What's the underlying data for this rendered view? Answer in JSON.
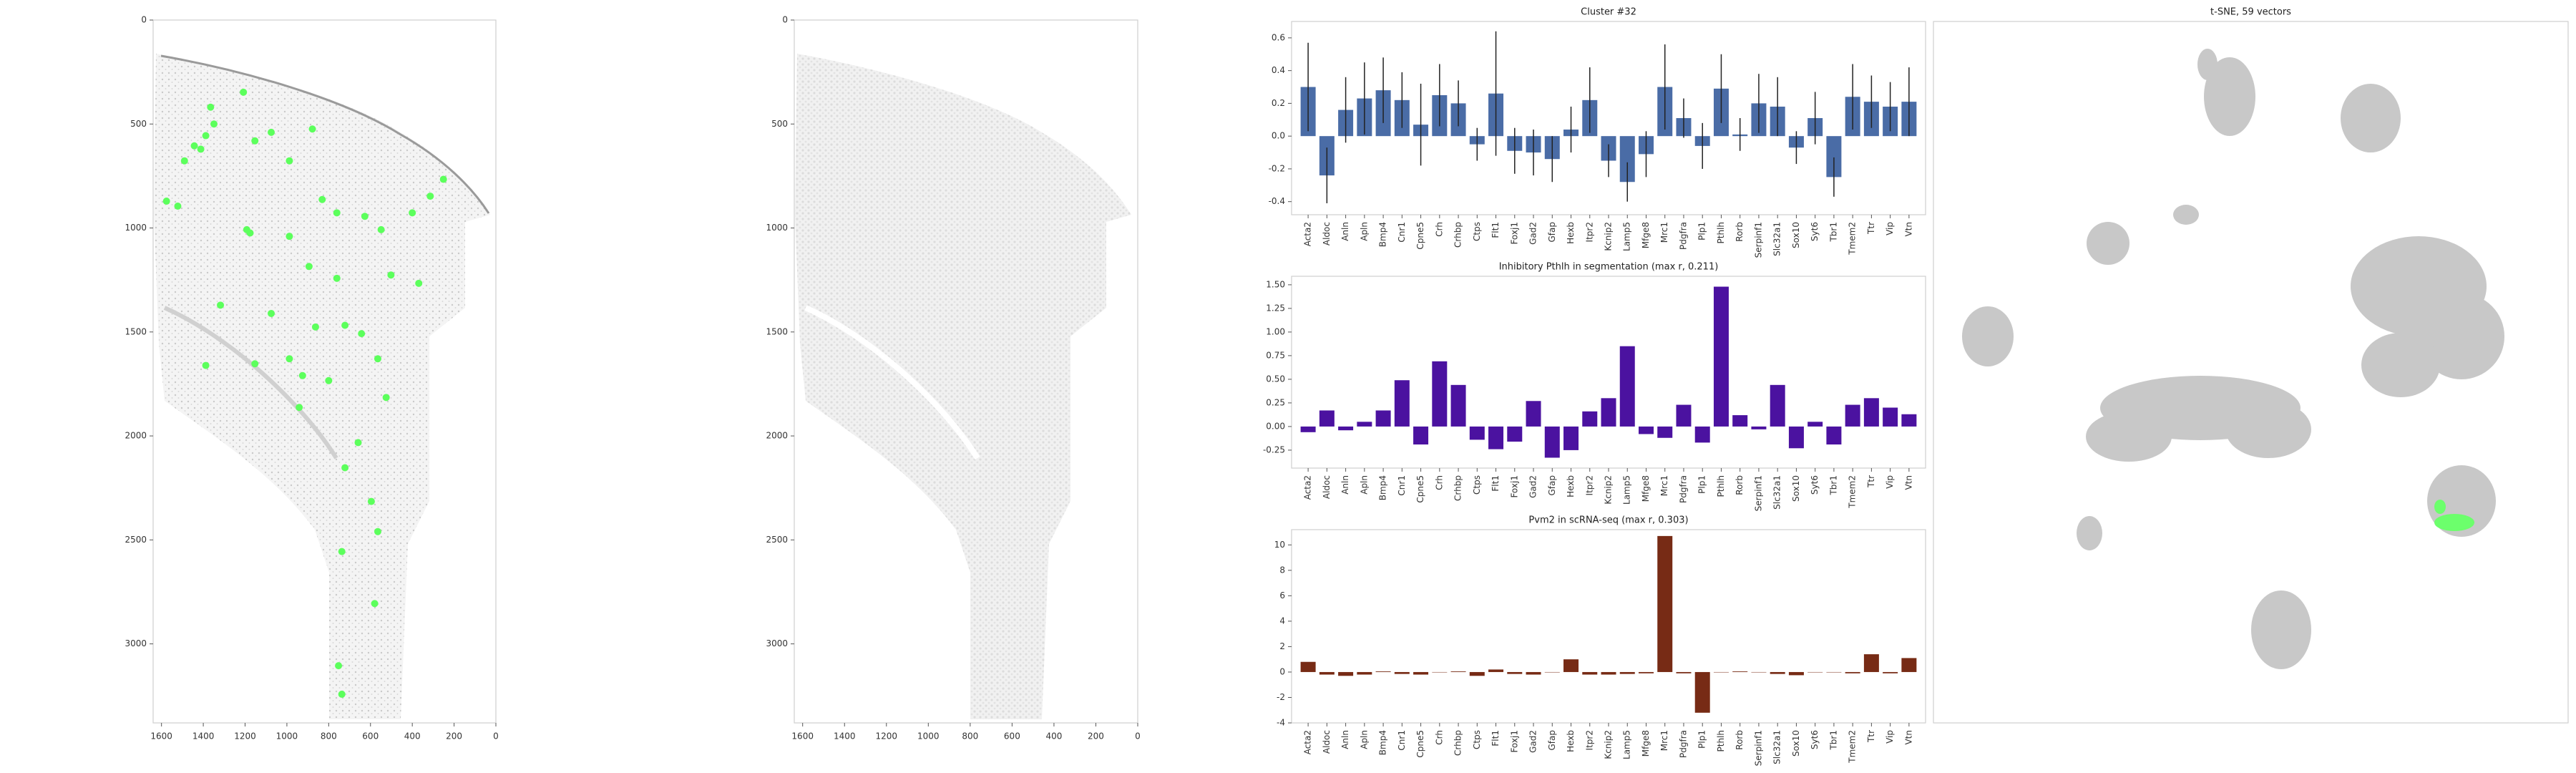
{
  "chart_data": [
    {
      "type": "scatter",
      "color": "#5cff5c",
      "x": [
        1208,
        1365,
        1349,
        1388,
        1443,
        1412,
        1490,
        1153,
        988,
        878,
        1075,
        1576,
        1522,
        1176,
        1192,
        988,
        831,
        761,
        627,
        549,
        314,
        400,
        502,
        369,
        894,
        761,
        1075,
        1318,
        988,
        863,
        722,
        565,
        1153,
        1388,
        925,
        800,
        941,
        525,
        659,
        722,
        596,
        737,
        565,
        580,
        753,
        737,
        643,
        251
      ],
      "y": [
        347,
        419,
        500,
        556,
        605,
        621,
        677,
        581,
        677,
        524,
        540,
        871,
        895,
        1024,
        1008,
        1040,
        863,
        927,
        944,
        1008,
        847,
        927,
        1226,
        1266,
        1185,
        1242,
        1411,
        1371,
        1629,
        1476,
        1468,
        1629,
        1653,
        1661,
        1710,
        1734,
        1863,
        1815,
        2032,
        2153,
        2315,
        2556,
        2460,
        2806,
        3105,
        3242,
        1508,
        766
      ],
      "xlim": [
        1640,
        0
      ],
      "xticks": [
        1600,
        1400,
        1200,
        1000,
        800,
        600,
        400,
        200,
        0
      ],
      "ylim": [
        3380,
        0
      ],
      "yticks": [
        0,
        500,
        1000,
        1500,
        2000,
        2500,
        3000
      ]
    },
    {
      "type": "image",
      "xlim": [
        1640,
        0
      ],
      "xticks": [
        1600,
        1400,
        1200,
        1000,
        800,
        600,
        400,
        200,
        0
      ],
      "ylim": [
        3380,
        0
      ],
      "yticks": [
        0,
        500,
        1000,
        1500,
        2000,
        2500,
        3000
      ]
    },
    {
      "type": "bar",
      "title": "Cluster #32",
      "color": "#4a6ca6",
      "categories": [
        "Acta2",
        "Aldoc",
        "Anln",
        "Apln",
        "Bmp4",
        "Cnr1",
        "Cpne5",
        "Crh",
        "Crhbp",
        "Ctps",
        "Flt1",
        "Foxj1",
        "Gad2",
        "Gfap",
        "Hexb",
        "Itpr2",
        "Kcnip2",
        "Lamp5",
        "Mfge8",
        "Mrc1",
        "Pdgfra",
        "Plp1",
        "Pthlh",
        "Rorb",
        "Serpinf1",
        "Slc32a1",
        "Sox10",
        "Syt6",
        "Tbr1",
        "Tmem2",
        "Ttr",
        "Vip",
        "Vtn"
      ],
      "values": [
        0.3,
        -0.24,
        0.16,
        0.23,
        0.28,
        0.22,
        0.07,
        0.25,
        0.2,
        -0.05,
        0.26,
        -0.09,
        -0.1,
        -0.14,
        0.04,
        0.22,
        -0.15,
        -0.28,
        -0.11,
        0.3,
        0.11,
        -0.06,
        0.29,
        0.01,
        0.2,
        0.18,
        -0.07,
        0.11,
        -0.25,
        0.24,
        0.21,
        0.18,
        0.21
      ],
      "errors": [
        0.27,
        0.17,
        0.2,
        0.22,
        0.2,
        0.17,
        0.25,
        0.19,
        0.14,
        0.1,
        0.38,
        0.14,
        0.14,
        0.14,
        0.14,
        0.2,
        0.1,
        0.12,
        0.14,
        0.26,
        0.12,
        0.14,
        0.21,
        0.1,
        0.18,
        0.18,
        0.1,
        0.16,
        0.12,
        0.2,
        0.16,
        0.15,
        0.21
      ],
      "ylim": [
        -0.48,
        0.7
      ],
      "yticks": [
        -0.4,
        -0.2,
        {
          "value": 0,
          "label": "0.0"
        },
        0.2,
        0.4,
        0.6
      ]
    },
    {
      "type": "bar",
      "title": "Inhibitory Pthlh in segmentation (max r, 0.211)",
      "color": "#4b12a0",
      "categories": [
        "Acta2",
        "Aldoc",
        "Anln",
        "Apln",
        "Bmp4",
        "Cnr1",
        "Cpne5",
        "Crh",
        "Crhbp",
        "Ctps",
        "Flt1",
        "Foxj1",
        "Gad2",
        "Gfap",
        "Hexb",
        "Itpr2",
        "Kcnip2",
        "Lamp5",
        "Mfge8",
        "Mrc1",
        "Pdgfra",
        "Plp1",
        "Pthlh",
        "Rorb",
        "Serpinf1",
        "Slc32a1",
        "Sox10",
        "Syt6",
        "Tbr1",
        "Tmem2",
        "Ttr",
        "Vip",
        "Vtn"
      ],
      "values": [
        -0.06,
        0.17,
        -0.04,
        0.05,
        0.17,
        0.49,
        -0.19,
        0.69,
        0.44,
        -0.14,
        -0.24,
        -0.16,
        0.27,
        -0.33,
        -0.25,
        0.16,
        0.3,
        0.85,
        -0.08,
        -0.12,
        0.23,
        -0.17,
        1.48,
        0.12,
        -0.03,
        0.44,
        -0.23,
        0.05,
        -0.19,
        0.23,
        0.3,
        0.2,
        0.13
      ],
      "ylim": [
        -0.44,
        1.59
      ],
      "yticks": [
        -0.25,
        {
          "value": 0,
          "label": "0.00"
        },
        0.25,
        {
          "value": 0.5,
          "label": "0.50"
        },
        0.75,
        {
          "value": 1,
          "label": "1.00"
        },
        1.25,
        {
          "value": 1.5,
          "label": "1.50"
        }
      ]
    },
    {
      "type": "bar",
      "title": "Pvm2 in scRNA-seq (max r, 0.303)",
      "color": "#772b15",
      "categories": [
        "Acta2",
        "Aldoc",
        "Anln",
        "Apln",
        "Bmp4",
        "Cnr1",
        "Cpne5",
        "Crh",
        "Crhbp",
        "Ctps",
        "Flt1",
        "Foxj1",
        "Gad2",
        "Gfap",
        "Hexb",
        "Itpr2",
        "Kcnip2",
        "Lamp5",
        "Mfge8",
        "Mrc1",
        "Pdgfra",
        "Plp1",
        "Pthlh",
        "Rorb",
        "Serpinf1",
        "Slc32a1",
        "Sox10",
        "Syt6",
        "Tbr1",
        "Tmem2",
        "Ttr",
        "Vip",
        "Vtn"
      ],
      "values": [
        0.8,
        -0.2,
        -0.3,
        -0.2,
        0.05,
        -0.15,
        -0.2,
        0,
        0.05,
        -0.3,
        0.2,
        -0.15,
        -0.2,
        0,
        1.0,
        -0.2,
        -0.2,
        -0.15,
        -0.1,
        10.7,
        -0.1,
        -3.2,
        0,
        0.05,
        0,
        -0.15,
        -0.25,
        0,
        0,
        -0.1,
        1.4,
        -0.1,
        1.1
      ],
      "ylim": [
        -4.0,
        11.2
      ],
      "yticks": [
        -4,
        -2,
        0,
        2,
        4,
        6,
        8,
        10
      ]
    },
    {
      "type": "image",
      "title": "t-SNE, 59 vectors"
    }
  ]
}
